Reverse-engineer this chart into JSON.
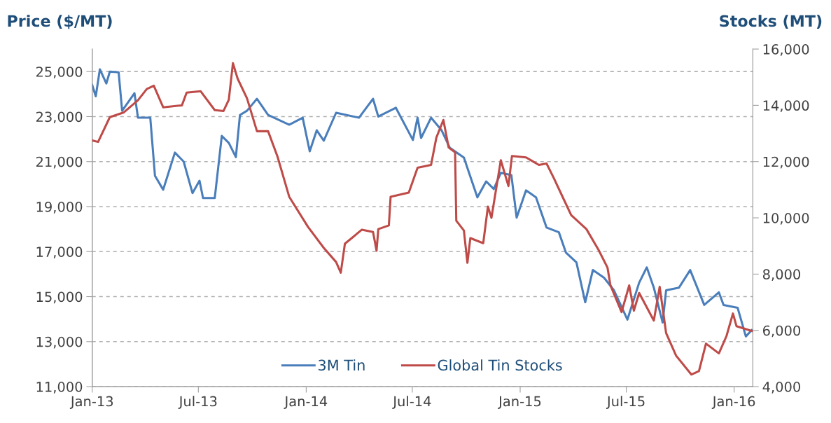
{
  "chart_data": {
    "type": "line",
    "ylabel": "Price ($/MT)",
    "y2label": "Stocks (MT)",
    "xlim": [
      "2013-01-01",
      "2016-02-02"
    ],
    "xticks": [
      {
        "value": "2013-01-01",
        "label": "Jan-13"
      },
      {
        "value": "2013-07-01",
        "label": "Jul-13"
      },
      {
        "value": "2014-01-01",
        "label": "Jan-14"
      },
      {
        "value": "2014-07-01",
        "label": "Jul-14"
      },
      {
        "value": "2015-01-01",
        "label": "Jan-15"
      },
      {
        "value": "2015-07-01",
        "label": "Jul-15"
      },
      {
        "value": "2016-01-01",
        "label": "Jan-16"
      }
    ],
    "ylim": [
      11000,
      26000
    ],
    "yticks": [
      {
        "value": 11000,
        "label": "11,000"
      },
      {
        "value": 13000,
        "label": "13,000"
      },
      {
        "value": 15000,
        "label": "15,000"
      },
      {
        "value": 17000,
        "label": "17,000"
      },
      {
        "value": 19000,
        "label": "19,000"
      },
      {
        "value": 21000,
        "label": "21,000"
      },
      {
        "value": 23000,
        "label": "23,000"
      },
      {
        "value": 25000,
        "label": "25,000"
      }
    ],
    "y2lim": [
      4000,
      16000
    ],
    "y2ticks": [
      {
        "value": 4000,
        "label": "4,000"
      },
      {
        "value": 6000,
        "label": "6,000"
      },
      {
        "value": 8000,
        "label": "8,000"
      },
      {
        "value": 10000,
        "label": "10,000"
      },
      {
        "value": 12000,
        "label": "12,000"
      },
      {
        "value": 14000,
        "label": "14,000"
      },
      {
        "value": 16000,
        "label": "16,000"
      }
    ],
    "grid": "y",
    "legend": "bottom",
    "marker": "none",
    "line_style": "solid",
    "series": [
      {
        "name": "3M Tin",
        "color": "#4a7ebb",
        "x": [
          "2013-01-01",
          "2013-01-07",
          "2013-01-14",
          "2013-01-25",
          "2013-01-31",
          "2013-02-15",
          "2013-02-21",
          "2013-03-14",
          "2013-03-20",
          "2013-04-10",
          "2013-04-18",
          "2013-05-02",
          "2013-05-22",
          "2013-06-06",
          "2013-06-21",
          "2013-07-03",
          "2013-07-09",
          "2013-07-29",
          "2013-08-10",
          "2013-08-22",
          "2013-09-03",
          "2013-09-10",
          "2013-09-22",
          "2013-10-09",
          "2013-10-28",
          "2013-12-03",
          "2013-12-26",
          "2014-01-07",
          "2014-01-19",
          "2014-01-31",
          "2014-02-21",
          "2014-04-01",
          "2014-04-25",
          "2014-05-04",
          "2014-06-03",
          "2014-07-02",
          "2014-07-10",
          "2014-07-16",
          "2014-08-02",
          "2014-08-20",
          "2014-09-03",
          "2014-09-27",
          "2014-10-20",
          "2014-11-04",
          "2014-11-17",
          "2014-11-29",
          "2014-12-17",
          "2014-12-26",
          "2015-01-11",
          "2015-01-28",
          "2015-02-15",
          "2015-03-08",
          "2015-03-20",
          "2015-04-07",
          "2015-04-22",
          "2015-05-05",
          "2015-05-24",
          "2015-06-10",
          "2015-07-03",
          "2015-07-23",
          "2015-08-05",
          "2015-08-17",
          "2015-09-01",
          "2015-09-07",
          "2015-09-29",
          "2015-10-18",
          "2015-11-11",
          "2015-12-06",
          "2015-12-14",
          "2016-01-07",
          "2016-01-21",
          "2016-01-31"
        ],
        "values": [
          24400,
          23900,
          25100,
          24470,
          25000,
          24970,
          23260,
          24040,
          22950,
          22950,
          20370,
          19750,
          21400,
          21000,
          19600,
          20150,
          19380,
          19380,
          22140,
          21830,
          21200,
          23070,
          23260,
          23790,
          23070,
          22640,
          22950,
          21460,
          22390,
          21930,
          23170,
          22950,
          23790,
          23000,
          23390,
          21960,
          22950,
          22050,
          22950,
          22390,
          21610,
          21180,
          19410,
          20120,
          19780,
          20500,
          20400,
          18510,
          19720,
          19410,
          18070,
          17860,
          16960,
          16520,
          14750,
          16180,
          15840,
          15280,
          13980,
          15620,
          16300,
          15400,
          13850,
          15280,
          15400,
          16180,
          14630,
          15190,
          14630,
          14500,
          13230,
          13510
        ]
      },
      {
        "name": "Global Tin Stocks",
        "color": "#be4b48",
        "axis": "y2",
        "x": [
          "2013-01-01",
          "2013-01-11",
          "2013-01-31",
          "2013-02-24",
          "2013-03-20",
          "2013-04-04",
          "2013-04-16",
          "2013-05-02",
          "2013-06-03",
          "2013-06-11",
          "2013-07-05",
          "2013-07-29",
          "2013-08-13",
          "2013-08-22",
          "2013-08-29",
          "2013-09-06",
          "2013-09-22",
          "2013-10-09",
          "2013-10-28",
          "2013-11-13",
          "2013-12-03",
          "2014-01-04",
          "2014-01-31",
          "2014-02-21",
          "2014-03-01",
          "2014-03-08",
          "2014-04-06",
          "2014-04-25",
          "2014-05-01",
          "2014-05-04",
          "2014-05-22",
          "2014-05-25",
          "2014-06-25",
          "2014-07-10",
          "2014-08-02",
          "2014-08-11",
          "2014-08-23",
          "2014-09-01",
          "2014-09-12",
          "2014-09-14",
          "2014-09-27",
          "2014-10-03",
          "2014-10-08",
          "2014-10-30",
          "2014-11-07",
          "2014-11-13",
          "2014-11-29",
          "2014-12-12",
          "2014-12-18",
          "2015-01-11",
          "2015-02-02",
          "2015-02-15",
          "2015-02-27",
          "2015-03-17",
          "2015-03-29",
          "2015-04-24",
          "2015-05-15",
          "2015-05-30",
          "2015-06-04",
          "2015-06-23",
          "2015-07-06",
          "2015-07-14",
          "2015-07-23",
          "2015-08-17",
          "2015-08-27",
          "2015-09-07",
          "2015-09-24",
          "2015-10-20",
          "2015-11-02",
          "2015-11-14",
          "2015-12-06",
          "2015-12-19",
          "2015-12-30",
          "2016-01-05",
          "2016-01-31"
        ],
        "values": [
          12750,
          12700,
          13580,
          13750,
          14180,
          14580,
          14700,
          13930,
          14000,
          14450,
          14500,
          13830,
          13800,
          14200,
          15500,
          14950,
          14250,
          13080,
          13080,
          12180,
          10750,
          9680,
          8930,
          8430,
          8050,
          9080,
          9580,
          9500,
          8830,
          9600,
          9730,
          10750,
          10900,
          11780,
          11880,
          12850,
          13480,
          12500,
          12330,
          9900,
          9550,
          8400,
          9280,
          9100,
          10400,
          10000,
          12050,
          11130,
          12200,
          12150,
          11880,
          11930,
          11430,
          10630,
          10100,
          9600,
          8850,
          8230,
          7600,
          6650,
          7600,
          6700,
          7330,
          6350,
          7550,
          5900,
          5100,
          4430,
          4550,
          5530,
          5180,
          5800,
          6600,
          6150,
          5980
        ]
      }
    ]
  }
}
